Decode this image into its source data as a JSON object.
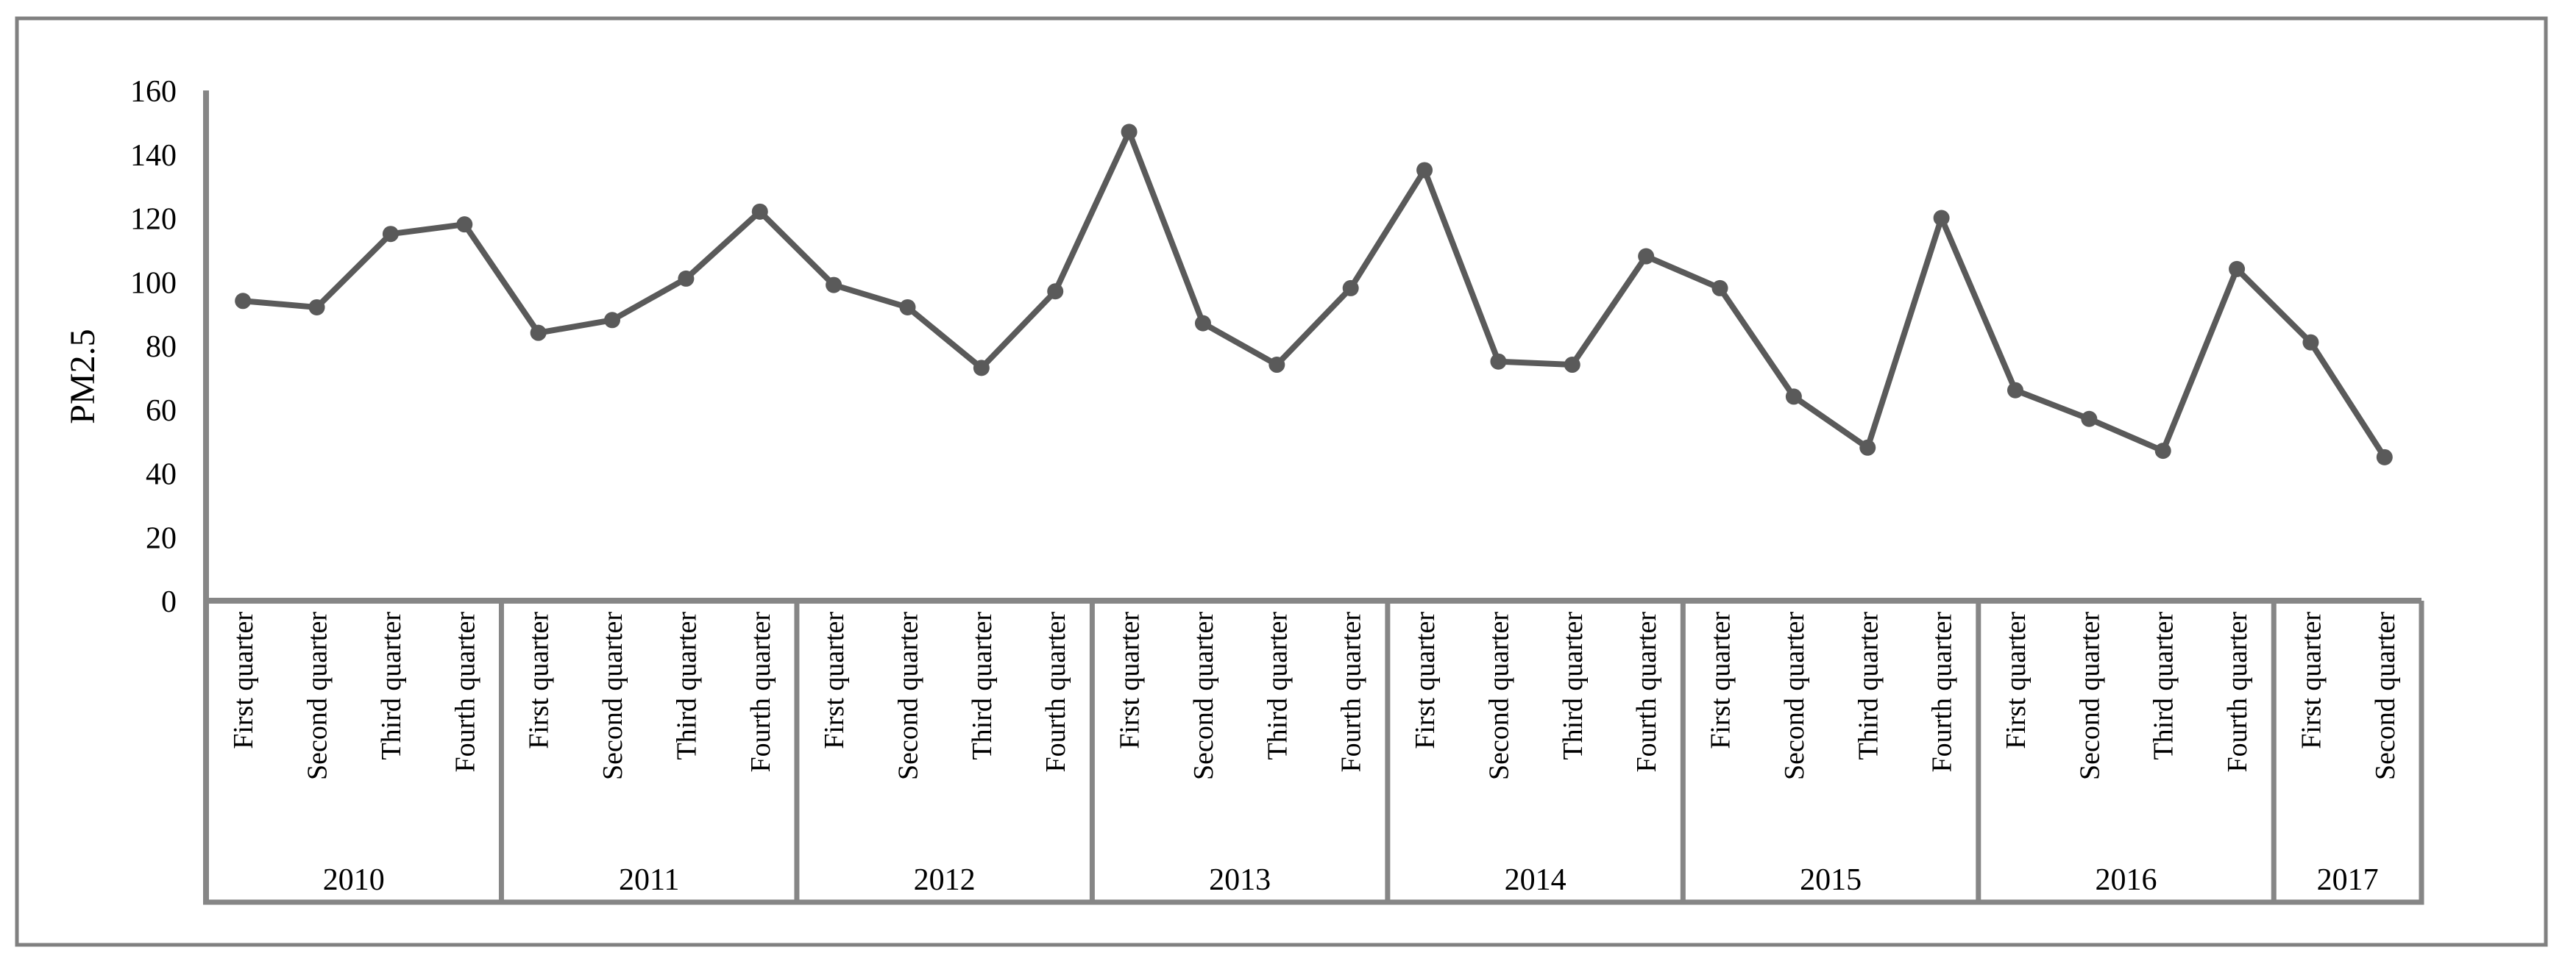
{
  "figure": {
    "ylabel": "PM2.5",
    "background_color": "#ffffff",
    "outer_border_color": "#808080",
    "axis_color": "#868686",
    "line_color": "#5a5a5a",
    "marker_color": "#5a5a5a",
    "text_color": "#000000"
  },
  "chart_data": {
    "type": "line",
    "title": "",
    "xlabel": "",
    "ylabel": "PM2.5",
    "ylim": [
      0,
      160
    ],
    "ytick_step": 20,
    "yticks": [
      "0",
      "20",
      "40",
      "60",
      "80",
      "100",
      "120",
      "140",
      "160"
    ],
    "grid": false,
    "legend": "none",
    "marker": "circle",
    "series_name": "PM2.5",
    "groups": [
      {
        "year": "2010",
        "quarters": [
          "First quarter",
          "Second quarter",
          "Third quarter",
          "Fourth quarter"
        ],
        "values": [
          94,
          92,
          115,
          118
        ]
      },
      {
        "year": "2011",
        "quarters": [
          "First quarter",
          "Second quarter",
          "Third quarter",
          "Fourth quarter"
        ],
        "values": [
          84,
          88,
          101,
          122
        ]
      },
      {
        "year": "2012",
        "quarters": [
          "First quarter",
          "Second quarter",
          "Third quarter",
          "Fourth quarter"
        ],
        "values": [
          99,
          92,
          73,
          97
        ]
      },
      {
        "year": "2013",
        "quarters": [
          "First quarter",
          "Second quarter",
          "Third quarter",
          "Fourth quarter"
        ],
        "values": [
          147,
          87,
          74,
          98
        ]
      },
      {
        "year": "2014",
        "quarters": [
          "First quarter",
          "Second quarter",
          "Third quarter",
          "Fourth quarter"
        ],
        "values": [
          135,
          75,
          74,
          108
        ]
      },
      {
        "year": "2015",
        "quarters": [
          "First quarter",
          "Second quarter",
          "Third quarter",
          "Fourth quarter"
        ],
        "values": [
          98,
          64,
          48,
          120
        ]
      },
      {
        "year": "2016",
        "quarters": [
          "First quarter",
          "Second quarter",
          "Third quarter",
          "Fourth quarter"
        ],
        "values": [
          66,
          57,
          47,
          104
        ]
      },
      {
        "year": "2017",
        "quarters": [
          "First quarter",
          "Second quarter"
        ],
        "values": [
          81,
          45
        ]
      }
    ]
  }
}
